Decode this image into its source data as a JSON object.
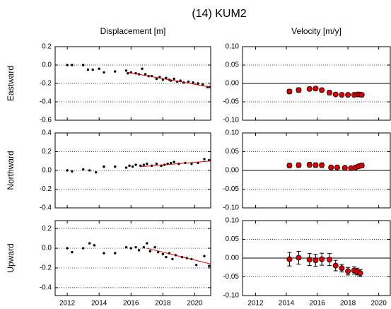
{
  "title": "(14) KUM2",
  "chart_data": [
    {
      "type": "scatter",
      "title": "Displacement [m]",
      "ylabel": "Eastward",
      "color": "#000000",
      "x": [
        2012.0,
        2012.3,
        2013.0,
        2013.3,
        2013.6,
        2014.0,
        2014.3,
        2015.0,
        2015.7,
        2015.8,
        2016.0,
        2016.3,
        2016.5,
        2016.7,
        2016.9,
        2017.1,
        2017.3,
        2017.6,
        2017.8,
        2018.0,
        2018.2,
        2018.4,
        2018.5,
        2018.7,
        2018.9,
        2019.1,
        2019.3,
        2019.6,
        2019.9,
        2020.2,
        2020.5,
        2020.8,
        2020.95
      ],
      "values": [
        0.0,
        0.0,
        0.0,
        -0.05,
        -0.05,
        -0.04,
        -0.08,
        -0.07,
        -0.06,
        -0.09,
        -0.08,
        -0.09,
        -0.1,
        -0.04,
        -0.1,
        -0.12,
        -0.12,
        -0.15,
        -0.13,
        -0.16,
        -0.14,
        -0.16,
        -0.17,
        -0.15,
        -0.18,
        -0.17,
        -0.19,
        -0.18,
        -0.19,
        -0.2,
        -0.21,
        -0.24,
        -0.24
      ],
      "trend": {
        "color": "#e00000",
        "x": [
          2015.8,
          2021.0
        ],
        "values": [
          -0.08,
          -0.24
        ]
      },
      "xlim": [
        2011.24,
        2021.0
      ],
      "xticks": [
        2012,
        2014,
        2016,
        2018,
        2020
      ],
      "xtick_labels": false,
      "ylim": [
        -0.6,
        0.2
      ],
      "yticks": [
        {
          "value": 0.2,
          "label": "0.2"
        },
        {
          "value": 0.0,
          "label": "0.0"
        },
        {
          "value": -0.2,
          "label": "-0.2"
        },
        {
          "value": -0.4,
          "label": "-0.4"
        },
        {
          "value": -0.6,
          "label": "-0.6"
        }
      ],
      "grid": true,
      "zero_line": false
    },
    {
      "type": "errorbar",
      "title": "Velocity [m/y]",
      "color": "#e00000",
      "x": [
        2014.2,
        2014.8,
        2015.5,
        2015.9,
        2016.3,
        2016.8,
        2017.2,
        2017.6,
        2018.0,
        2018.4,
        2018.6,
        2018.75,
        2018.9
      ],
      "values": [
        -0.022,
        -0.018,
        -0.015,
        -0.014,
        -0.018,
        -0.025,
        -0.03,
        -0.031,
        -0.031,
        -0.031,
        -0.03,
        -0.03,
        -0.031
      ],
      "errors": [
        0.006,
        0.006,
        0.005,
        0.005,
        0.005,
        0.006,
        0.004,
        0.003,
        0.003,
        0.003,
        0.003,
        0.003,
        0.003
      ],
      "xlim": [
        2011.15,
        2020.75
      ],
      "xticks": [
        2012,
        2014,
        2016,
        2018,
        2020
      ],
      "xtick_labels": false,
      "ylim": [
        -0.1,
        0.1
      ],
      "yticks": [
        {
          "value": 0.1,
          "label": "0.10"
        },
        {
          "value": 0.05,
          "label": "0.05"
        },
        {
          "value": 0.0,
          "label": "0.00"
        },
        {
          "value": -0.05,
          "label": "-0.05"
        },
        {
          "value": -0.1,
          "label": "-0.10"
        }
      ],
      "grid": true,
      "zero_line": true
    },
    {
      "type": "scatter",
      "ylabel": "Northward",
      "color": "#000000",
      "x": [
        2012.0,
        2012.3,
        2013.0,
        2013.4,
        2013.8,
        2014.3,
        2015.0,
        2015.7,
        2015.9,
        2016.1,
        2016.3,
        2016.6,
        2016.8,
        2017.0,
        2017.3,
        2017.6,
        2017.9,
        2018.1,
        2018.3,
        2018.5,
        2018.7,
        2019.0,
        2019.4,
        2019.8,
        2020.2,
        2020.6,
        2020.9
      ],
      "values": [
        0.0,
        -0.01,
        0.01,
        0.0,
        -0.02,
        0.04,
        0.04,
        0.03,
        0.05,
        0.04,
        0.06,
        0.05,
        0.06,
        0.07,
        0.05,
        0.07,
        0.05,
        0.06,
        0.07,
        0.08,
        0.09,
        0.07,
        0.08,
        0.07,
        0.08,
        0.12,
        0.11
      ],
      "trend": {
        "color": "#e00000",
        "x": [
          2016.6,
          2021.0
        ],
        "values": [
          0.04,
          0.1
        ]
      },
      "xlim": [
        2011.24,
        2021.0
      ],
      "xticks": [
        2012,
        2014,
        2016,
        2018,
        2020
      ],
      "xtick_labels": false,
      "ylim": [
        -0.4,
        0.4
      ],
      "yticks": [
        {
          "value": 0.4,
          "label": "0.4"
        },
        {
          "value": 0.2,
          "label": "0.2"
        },
        {
          "value": 0.0,
          "label": "0.0"
        },
        {
          "value": -0.2,
          "label": "-0.2"
        },
        {
          "value": -0.4,
          "label": "-0.4"
        }
      ],
      "grid": true,
      "zero_line": false
    },
    {
      "type": "errorbar",
      "color": "#e00000",
      "x": [
        2014.2,
        2014.8,
        2015.5,
        2015.9,
        2016.3,
        2016.9,
        2017.3,
        2017.8,
        2018.2,
        2018.5,
        2018.7,
        2018.9
      ],
      "values": [
        0.013,
        0.014,
        0.015,
        0.014,
        0.014,
        0.008,
        0.008,
        0.007,
        0.006,
        0.008,
        0.011,
        0.013
      ],
      "errors": [
        0.006,
        0.006,
        0.006,
        0.006,
        0.006,
        0.004,
        0.004,
        0.003,
        0.003,
        0.004,
        0.005,
        0.006
      ],
      "xlim": [
        2011.15,
        2020.75
      ],
      "xticks": [
        2012,
        2014,
        2016,
        2018,
        2020
      ],
      "xtick_labels": false,
      "ylim": [
        -0.1,
        0.1
      ],
      "yticks": [
        {
          "value": 0.1,
          "label": "0.10"
        },
        {
          "value": 0.05,
          "label": "0.05"
        },
        {
          "value": 0.0,
          "label": "0.00"
        },
        {
          "value": -0.05,
          "label": "-0.05"
        },
        {
          "value": -0.1,
          "label": "-0.10"
        }
      ],
      "grid": true,
      "zero_line": true
    },
    {
      "type": "scatter",
      "ylabel": "Upward",
      "color": "#000000",
      "x": [
        2012.0,
        2012.3,
        2013.0,
        2013.4,
        2013.7,
        2014.3,
        2015.0,
        2015.7,
        2016.0,
        2016.3,
        2016.5,
        2016.8,
        2017.0,
        2017.2,
        2017.5,
        2017.7,
        2018.0,
        2018.2,
        2018.4,
        2018.6,
        2018.8,
        2019.2,
        2019.5,
        2019.8,
        2020.1,
        2020.6,
        2020.9
      ],
      "values": [
        0.0,
        -0.04,
        0.0,
        0.05,
        0.03,
        -0.05,
        -0.05,
        0.01,
        0.0,
        0.01,
        -0.02,
        0.01,
        0.05,
        -0.03,
        0.01,
        -0.04,
        -0.06,
        -0.09,
        -0.05,
        -0.11,
        -0.07,
        -0.09,
        -0.1,
        -0.11,
        -0.17,
        -0.08,
        -0.18
      ],
      "trend": {
        "color": "#e00000",
        "x": [
          2017.0,
          2021.0
        ],
        "values": [
          0.0,
          -0.16
        ]
      },
      "xlim": [
        2011.24,
        2021.0
      ],
      "xticks": [
        2012,
        2014,
        2016,
        2018,
        2020
      ],
      "xtick_labels": true,
      "ylim": [
        -0.48,
        0.28
      ],
      "yticks": [
        {
          "value": 0.2,
          "label": "0.2"
        },
        {
          "value": 0.0,
          "label": "0.0"
        },
        {
          "value": -0.2,
          "label": "-0.2"
        },
        {
          "value": -0.4,
          "label": "-0.4"
        }
      ],
      "grid": true,
      "zero_line": false
    },
    {
      "type": "errorbar",
      "color": "#e00000",
      "x": [
        2014.2,
        2014.8,
        2015.5,
        2015.9,
        2016.3,
        2016.8,
        2017.2,
        2017.6,
        2018.0,
        2018.4,
        2018.6,
        2018.8
      ],
      "values": [
        -0.003,
        0.001,
        -0.004,
        -0.006,
        -0.003,
        -0.004,
        -0.02,
        -0.027,
        -0.035,
        -0.033,
        -0.036,
        -0.04
      ],
      "errors": [
        0.018,
        0.017,
        0.016,
        0.016,
        0.016,
        0.016,
        0.014,
        0.01,
        0.01,
        0.01,
        0.009,
        0.009
      ],
      "xlim": [
        2011.15,
        2020.75
      ],
      "xticks": [
        2012,
        2014,
        2016,
        2018,
        2020
      ],
      "xtick_labels": true,
      "ylim": [
        -0.1,
        0.1
      ],
      "yticks": [
        {
          "value": 0.1,
          "label": "0.10"
        },
        {
          "value": 0.05,
          "label": "0.05"
        },
        {
          "value": 0.0,
          "label": "0.00"
        },
        {
          "value": -0.05,
          "label": "-0.05"
        },
        {
          "value": -0.1,
          "label": "-0.10"
        }
      ],
      "grid": true,
      "zero_line": true
    }
  ]
}
